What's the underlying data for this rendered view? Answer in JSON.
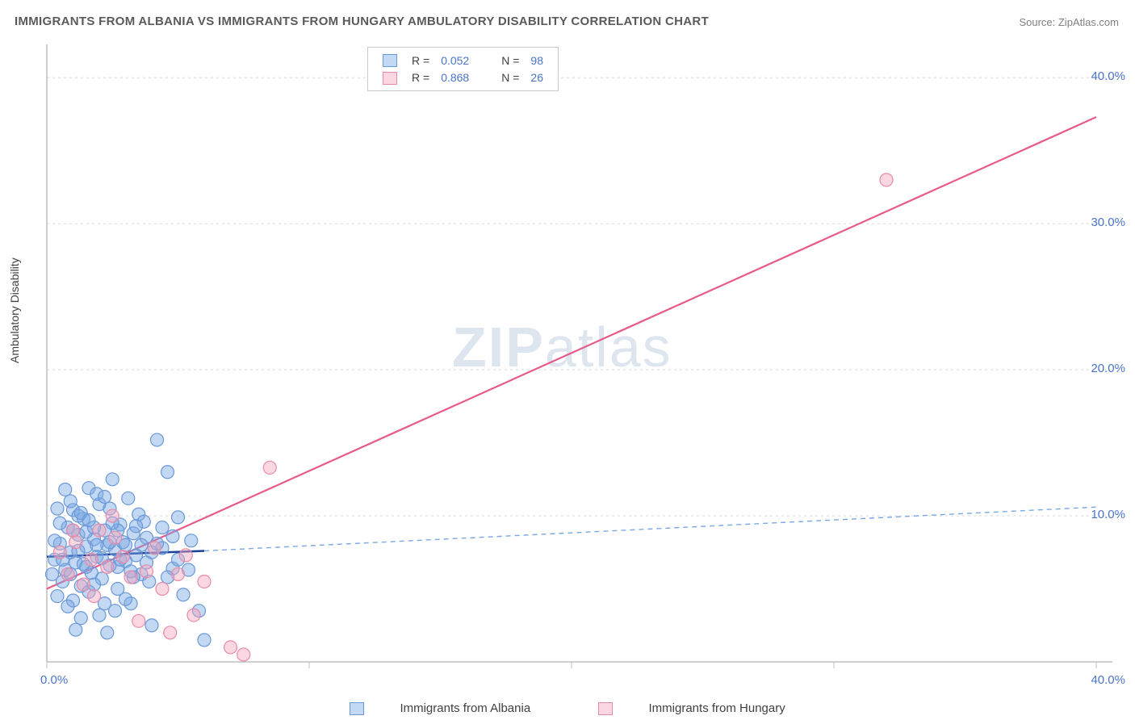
{
  "title": "IMMIGRANTS FROM ALBANIA VS IMMIGRANTS FROM HUNGARY AMBULATORY DISABILITY CORRELATION CHART",
  "source_prefix": "Source: ",
  "source_name": "ZipAtlas.com",
  "ylabel": "Ambulatory Disability",
  "watermark_zip": "ZIP",
  "watermark_atlas": "atlas",
  "chart": {
    "type": "scatter",
    "xlim": [
      0,
      40
    ],
    "ylim": [
      0,
      42
    ],
    "x_tick_positions": [
      0,
      10,
      20,
      30,
      40
    ],
    "x_tick_labels": [
      "0.0%",
      "",
      "",
      "",
      "40.0%"
    ],
    "y_tick_positions": [
      10,
      20,
      30,
      40
    ],
    "y_tick_labels": [
      "10.0%",
      "20.0%",
      "30.0%",
      "40.0%"
    ],
    "grid_color": "#d8d8d8",
    "axis_color": "#bfbfbf",
    "background_color": "#ffffff",
    "marker_radius": 8,
    "series": [
      {
        "name": "Immigrants from Albania",
        "fill_color": "rgba(122,168,227,0.45)",
        "stroke_color": "#6a98d8",
        "R_label": "R = ",
        "R_value": "0.052",
        "N_label": "N = ",
        "N_value": "98",
        "trend": {
          "solid_x1": 0.0,
          "solid_y1": 7.2,
          "solid_x2": 6.0,
          "solid_y2": 7.6,
          "dash_x1": 6.0,
          "dash_y1": 7.6,
          "dash_x2": 40.0,
          "dash_y2": 10.6,
          "solid_color": "#1a3f9a",
          "solid_width": 2.5,
          "dash_color": "#7aa8e3",
          "dash_width": 1.4,
          "dash_pattern": "6,5"
        },
        "points": [
          [
            0.3,
            7.0
          ],
          [
            0.5,
            8.1
          ],
          [
            0.7,
            6.3
          ],
          [
            0.8,
            9.2
          ],
          [
            0.9,
            7.5
          ],
          [
            1.0,
            10.4
          ],
          [
            1.1,
            6.8
          ],
          [
            1.2,
            8.7
          ],
          [
            1.3,
            5.2
          ],
          [
            1.4,
            9.8
          ],
          [
            1.5,
            7.9
          ],
          [
            1.6,
            11.9
          ],
          [
            1.7,
            6.1
          ],
          [
            1.8,
            8.4
          ],
          [
            1.9,
            7.2
          ],
          [
            2.0,
            10.8
          ],
          [
            2.1,
            5.7
          ],
          [
            2.2,
            9.0
          ],
          [
            2.3,
            8.0
          ],
          [
            2.4,
            6.6
          ],
          [
            2.5,
            12.5
          ],
          [
            2.6,
            7.7
          ],
          [
            2.7,
            5.0
          ],
          [
            2.8,
            9.4
          ],
          [
            2.9,
            8.2
          ],
          [
            3.0,
            6.9
          ],
          [
            3.1,
            11.2
          ],
          [
            3.2,
            4.0
          ],
          [
            3.3,
            8.8
          ],
          [
            3.4,
            7.3
          ],
          [
            3.5,
            10.1
          ],
          [
            3.6,
            6.0
          ],
          [
            3.7,
            9.6
          ],
          [
            3.8,
            8.5
          ],
          [
            3.9,
            5.5
          ],
          [
            4.0,
            2.5
          ],
          [
            4.2,
            15.2
          ],
          [
            4.4,
            7.8
          ],
          [
            4.6,
            13.0
          ],
          [
            4.8,
            6.4
          ],
          [
            5.0,
            9.9
          ],
          [
            5.2,
            4.6
          ],
          [
            5.5,
            8.3
          ],
          [
            5.8,
            3.5
          ],
          [
            6.0,
            1.5
          ],
          [
            1.0,
            4.2
          ],
          [
            1.3,
            3.0
          ],
          [
            0.6,
            5.5
          ],
          [
            0.4,
            4.5
          ],
          [
            0.2,
            6.0
          ],
          [
            0.8,
            3.8
          ],
          [
            1.1,
            2.2
          ],
          [
            1.6,
            4.8
          ],
          [
            2.0,
            3.2
          ],
          [
            2.3,
            2.0
          ],
          [
            2.7,
            6.5
          ],
          [
            3.0,
            4.3
          ],
          [
            3.3,
            5.8
          ],
          [
            1.4,
            6.7
          ],
          [
            1.8,
            5.3
          ],
          [
            2.2,
            4.0
          ],
          [
            2.6,
            3.5
          ],
          [
            0.5,
            9.5
          ],
          [
            0.9,
            11.0
          ],
          [
            1.2,
            10.0
          ],
          [
            1.5,
            8.9
          ],
          [
            1.9,
            11.5
          ],
          [
            2.4,
            10.5
          ],
          [
            2.8,
            7.0
          ],
          [
            3.2,
            6.2
          ],
          [
            3.6,
            8.0
          ],
          [
            4.0,
            7.5
          ],
          [
            4.4,
            9.2
          ],
          [
            4.8,
            8.6
          ],
          [
            0.3,
            8.3
          ],
          [
            0.6,
            7.0
          ],
          [
            0.9,
            6.0
          ],
          [
            1.2,
            7.6
          ],
          [
            1.5,
            6.5
          ],
          [
            1.8,
            9.2
          ],
          [
            2.1,
            7.1
          ],
          [
            2.4,
            8.2
          ],
          [
            2.7,
            9.0
          ],
          [
            3.0,
            8.0
          ],
          [
            3.4,
            9.3
          ],
          [
            3.8,
            6.8
          ],
          [
            4.2,
            8.1
          ],
          [
            4.6,
            5.8
          ],
          [
            5.0,
            7.0
          ],
          [
            5.4,
            6.3
          ],
          [
            0.4,
            10.5
          ],
          [
            0.7,
            11.8
          ],
          [
            1.0,
            9.0
          ],
          [
            1.3,
            10.2
          ],
          [
            1.6,
            9.7
          ],
          [
            1.9,
            8.0
          ],
          [
            2.2,
            11.3
          ],
          [
            2.5,
            9.5
          ]
        ]
      },
      {
        "name": "Immigrants from Hungary",
        "fill_color": "rgba(244,166,188,0.45)",
        "stroke_color": "#e88aa8",
        "R_label": "R = ",
        "R_value": "0.868",
        "N_label": "N = ",
        "N_value": "26",
        "trend": {
          "solid_x1": 0.0,
          "solid_y1": 5.0,
          "solid_x2": 40.0,
          "solid_y2": 37.3,
          "solid_color": "#e85a8a",
          "solid_width": 2.2
        },
        "points": [
          [
            0.5,
            7.5
          ],
          [
            0.8,
            6.0
          ],
          [
            1.1,
            8.2
          ],
          [
            1.4,
            5.3
          ],
          [
            1.7,
            7.0
          ],
          [
            2.0,
            9.0
          ],
          [
            2.3,
            6.5
          ],
          [
            2.6,
            8.5
          ],
          [
            2.9,
            7.2
          ],
          [
            3.2,
            5.8
          ],
          [
            3.5,
            2.8
          ],
          [
            3.8,
            6.2
          ],
          [
            4.1,
            7.8
          ],
          [
            4.4,
            5.0
          ],
          [
            4.7,
            2.0
          ],
          [
            5.0,
            6.0
          ],
          [
            5.3,
            7.3
          ],
          [
            5.6,
            3.2
          ],
          [
            6.0,
            5.5
          ],
          [
            7.0,
            1.0
          ],
          [
            7.5,
            0.5
          ],
          [
            8.5,
            13.3
          ],
          [
            2.5,
            10.0
          ],
          [
            1.8,
            4.5
          ],
          [
            1.0,
            9.0
          ],
          [
            32.0,
            33.0
          ]
        ]
      }
    ]
  },
  "bottom_legend": {
    "series1_label": "Immigrants from Albania",
    "series2_label": "Immigrants from Hungary"
  }
}
